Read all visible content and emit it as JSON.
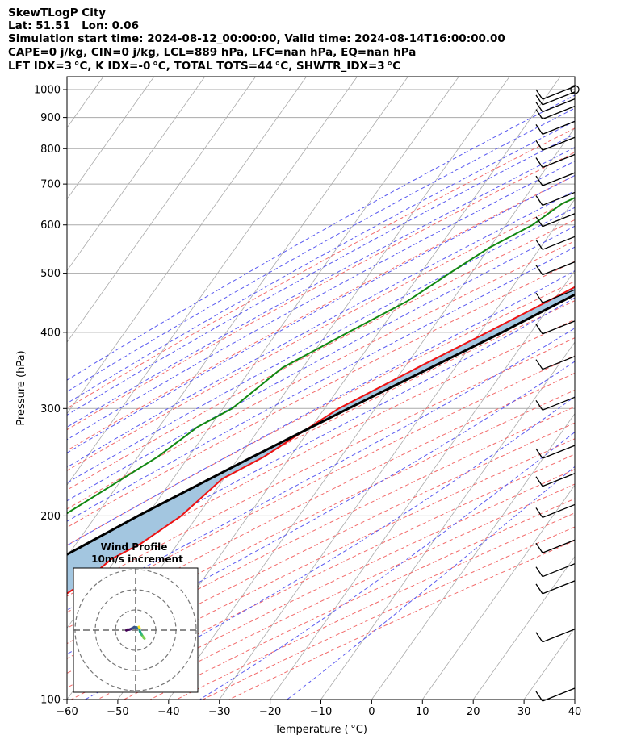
{
  "header": {
    "line1": "SkewTLogP City",
    "line2": "Lat: 51.51   Lon: 0.06",
    "line3": "Simulation start time: 2024-08-12_00:00:00, Valid time: 2024-08-14T16:00:00.00",
    "line4": "CAPE=0 j/kg, CIN=0 j/kg, LCL=889 hPa, LFC=nan hPa, EQ=nan hPa",
    "line5": "LFT IDX=3 °C, K IDX=-0 °C, TOTAL TOTS=44 °C, SHWTR_IDX=3 °C"
  },
  "chart_data": {
    "type": "skewt-logp",
    "xlabel": "Temperature ( °C)",
    "ylabel": "Pressure (hPa)",
    "xlim": [
      -60,
      40
    ],
    "ylim": [
      1050,
      100
    ],
    "x_ticks": [
      -60,
      -50,
      -40,
      -30,
      -20,
      -10,
      0,
      10,
      20,
      30,
      40
    ],
    "x_tick_labels": [
      "−60",
      "−50",
      "−40",
      "−30",
      "−20",
      "−10",
      "0",
      "10",
      "20",
      "30",
      "40"
    ],
    "y_ticks": [
      1000,
      900,
      800,
      700,
      600,
      500,
      400,
      300,
      200,
      100
    ],
    "y_tick_labels": [
      "1000",
      "900",
      "800",
      "700",
      "600",
      "500",
      "400",
      "300",
      "200",
      "100"
    ],
    "grid": true,
    "colors": {
      "temperature": "#ee1111",
      "dewpoint": "#118811",
      "parcel": "#000000",
      "shade": "#a3c6e0",
      "dry_adiabat": "#f26b6b",
      "moist_adiabat": "#5a5af0",
      "mixing_ratio": "#9a3fc0",
      "isotherm": "#aaaaaa"
    },
    "series": [
      {
        "key": "temperature",
        "pressure": [
          1011,
          950,
          900,
          850,
          800,
          750,
          700,
          650,
          600,
          550,
          500,
          450,
          400,
          350,
          300,
          250,
          230,
          200,
          180,
          170,
          155,
          140,
          125,
          110,
          100
        ],
        "temp": [
          22.6,
          18.6,
          16.6,
          15.8,
          13.8,
          10.6,
          6.4,
          2.2,
          -2.9,
          -8.4,
          -14.5,
          -21.0,
          -28.6,
          -37.4,
          -47.2,
          -55.2,
          -60.3,
          -63.2,
          -67.3,
          -70.9,
          -73.2,
          -77.6,
          -82.2,
          -87.9,
          -91.4
        ]
      },
      {
        "key": "dewpoint",
        "pressure": [
          1000,
          950,
          900,
          850,
          800,
          750,
          700,
          650,
          600,
          550,
          500,
          450,
          400,
          350,
          300,
          280,
          250,
          200,
          190,
          180,
          170,
          150,
          120,
          100
        ],
        "temp": [
          13.9,
          13.4,
          13.0,
          12.2,
          3.8,
          -12.6,
          -26.2,
          -31.9,
          -34.7,
          -40.1,
          -44.3,
          -48.7,
          -56.0,
          -64.0,
          -68.2,
          -72.4,
          -76.1,
          -86.5,
          -89.3,
          -94.9,
          -100.4,
          -103.9,
          -113.5,
          -124.2
        ]
      },
      {
        "key": "parcel",
        "pressure": [
          1011,
          950,
          900,
          889,
          850,
          800,
          700,
          600,
          500,
          400,
          300,
          250,
          200,
          150,
          100
        ],
        "temp": [
          22.6,
          18.1,
          13.8,
          14.0,
          12.7,
          10.8,
          5.6,
          -1.6,
          -11.5,
          -25.7,
          -45.3,
          -57.4,
          -71.7,
          -88.7,
          -111.5
        ]
      }
    ],
    "wind_pressures": [
      1000,
      970,
      950,
      925,
      900,
      850,
      800,
      750,
      700,
      650,
      600,
      550,
      500,
      450,
      400,
      350,
      300,
      250,
      225,
      200,
      175,
      160,
      150,
      125,
      100
    ],
    "hodograph": {
      "title": "Wind Profile",
      "subtitle": "10m/s increment",
      "u": [
        4.4,
        4.0,
        3.5,
        3.0,
        2.6,
        2.2,
        2.0,
        1.8,
        1.5,
        1.1,
        0.5,
        -0.7,
        -2.1,
        -2.7,
        -3.4,
        -3.9,
        -4.6
      ],
      "v": [
        -4.2,
        -3.8,
        -3.0,
        -2.3,
        -1.5,
        -0.8,
        0.0,
        0.7,
        1.2,
        1.2,
        1.3,
        1.5,
        0.7,
        0.4,
        0.2,
        0.3,
        -0.1
      ]
    }
  }
}
